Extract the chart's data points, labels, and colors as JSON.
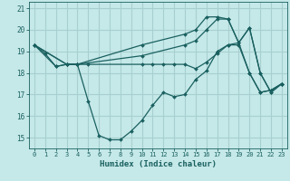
{
  "xlabel": "Humidex (Indice chaleur)",
  "bg_color": "#c5e8e8",
  "grid_color": "#a8d0d0",
  "line_color": "#1a6060",
  "xlim": [
    -0.5,
    23.5
  ],
  "ylim": [
    14.5,
    21.3
  ],
  "xticks": [
    0,
    1,
    2,
    3,
    4,
    5,
    6,
    7,
    8,
    9,
    10,
    11,
    12,
    13,
    14,
    15,
    16,
    17,
    18,
    19,
    20,
    21,
    22,
    23
  ],
  "yticks": [
    15,
    16,
    17,
    18,
    19,
    20,
    21
  ],
  "curves": [
    {
      "x": [
        0,
        1,
        2,
        3,
        4,
        5,
        6,
        7,
        8,
        9,
        10,
        11,
        12,
        13,
        14,
        15,
        16,
        17,
        18,
        19,
        20,
        21,
        22,
        23
      ],
      "y": [
        19.3,
        18.9,
        18.3,
        18.4,
        18.4,
        16.7,
        15.1,
        14.9,
        14.9,
        15.3,
        15.8,
        16.5,
        17.1,
        16.9,
        17.0,
        17.7,
        18.1,
        19.0,
        19.3,
        19.4,
        18.0,
        17.1,
        17.2,
        17.5
      ]
    },
    {
      "x": [
        0,
        2,
        3,
        4,
        5,
        10,
        11,
        12,
        13,
        14,
        15,
        16,
        17,
        18,
        19,
        20,
        21,
        22,
        23
      ],
      "y": [
        19.3,
        18.3,
        18.4,
        18.4,
        18.4,
        18.4,
        18.4,
        18.4,
        18.4,
        18.4,
        18.2,
        18.5,
        18.9,
        19.3,
        19.3,
        18.0,
        17.1,
        17.2,
        17.5
      ]
    },
    {
      "x": [
        0,
        3,
        4,
        10,
        14,
        15,
        16,
        17,
        18,
        19,
        20,
        21,
        22,
        23
      ],
      "y": [
        19.3,
        18.4,
        18.4,
        18.8,
        19.3,
        19.5,
        20.0,
        20.5,
        20.5,
        19.4,
        20.1,
        18.0,
        17.1,
        17.5
      ]
    },
    {
      "x": [
        0,
        3,
        4,
        10,
        14,
        15,
        16,
        17,
        18,
        19,
        20,
        21,
        22,
        23
      ],
      "y": [
        19.3,
        18.4,
        18.4,
        19.3,
        19.8,
        20.0,
        20.6,
        20.6,
        20.5,
        19.4,
        20.1,
        18.0,
        17.1,
        17.5
      ]
    }
  ]
}
